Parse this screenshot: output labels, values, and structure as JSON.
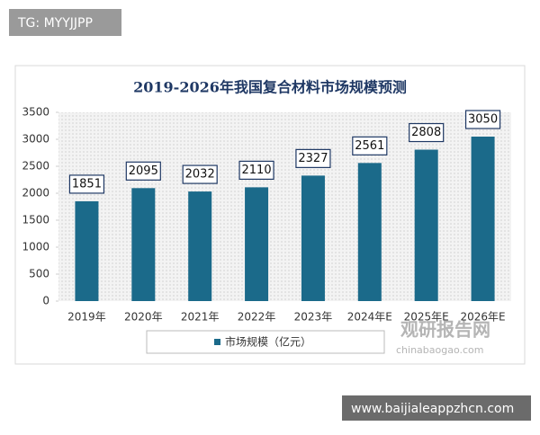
{
  "watermark_top": "TG: MYYJJPP",
  "watermark_bottom": "www.baijialeappzhcn.com",
  "logo_text": "观研报告网",
  "logo_url": "chinabaogao.com",
  "chart_data": {
    "type": "bar",
    "title": "2019-2026年我国复合材料市场规模预测",
    "categories": [
      "2019年",
      "2020年",
      "2021年",
      "2022年",
      "2023年",
      "2024年E",
      "2025年E",
      "2026年E"
    ],
    "series": [
      {
        "name": "市场规模（亿元）",
        "color": "#1b6a8a",
        "values": [
          1851,
          2095,
          2032,
          2110,
          2327,
          2561,
          2808,
          3050
        ]
      }
    ],
    "ylim": [
      0,
      3500
    ],
    "yticks": [
      0,
      500,
      1000,
      1500,
      2000,
      2500,
      3000,
      3500
    ]
  }
}
